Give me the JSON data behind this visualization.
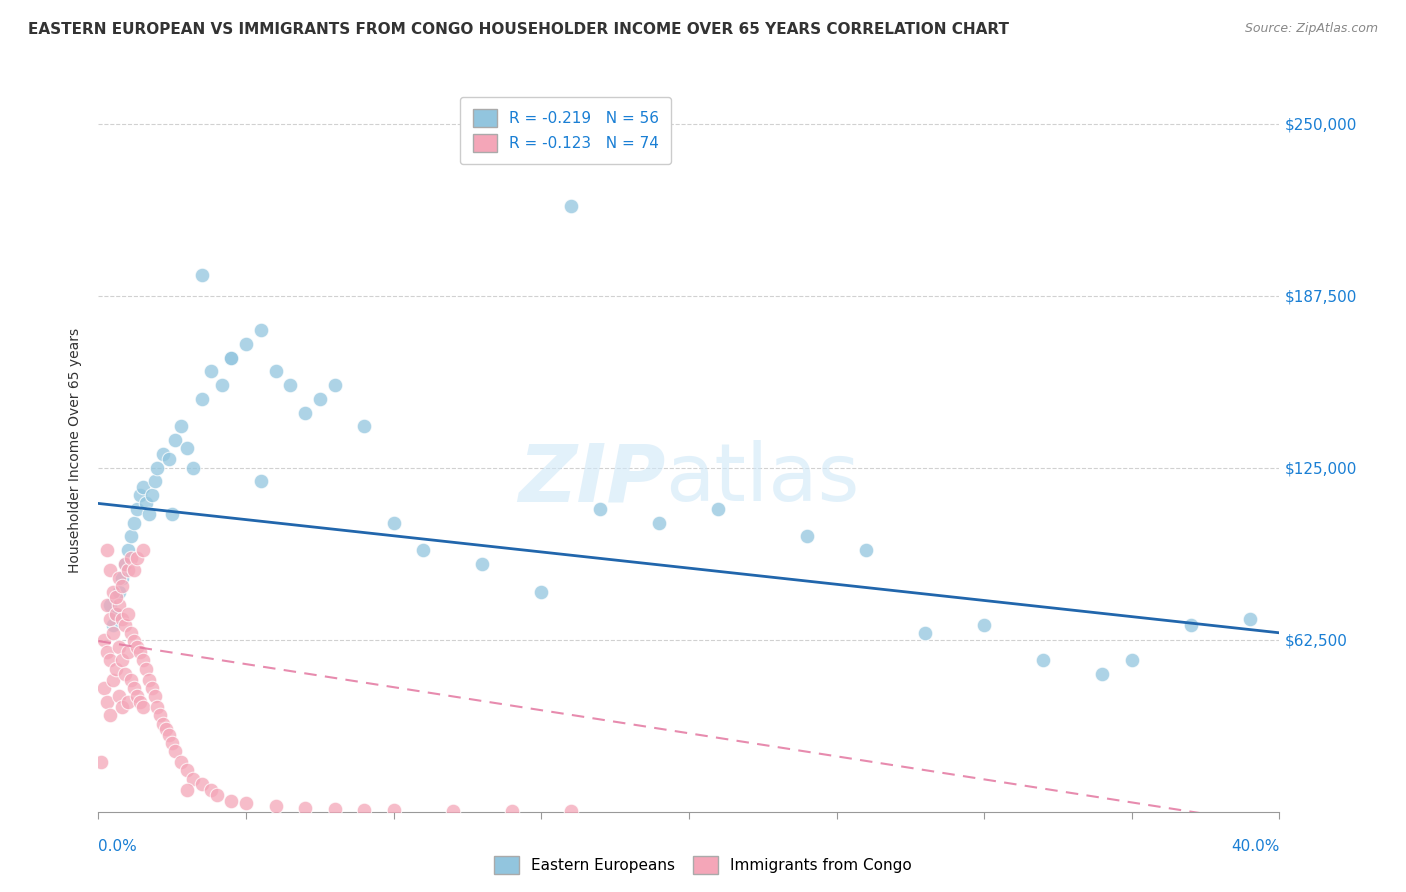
{
  "title": "EASTERN EUROPEAN VS IMMIGRANTS FROM CONGO HOUSEHOLDER INCOME OVER 65 YEARS CORRELATION CHART",
  "source": "Source: ZipAtlas.com",
  "ylabel": "Householder Income Over 65 years",
  "ytick_labels": [
    "$62,500",
    "$125,000",
    "$187,500",
    "$250,000"
  ],
  "ytick_values": [
    62500,
    125000,
    187500,
    250000
  ],
  "ymin": 0,
  "ymax": 262500,
  "xmin": 0.0,
  "xmax": 0.4,
  "blue_color": "#92c5de",
  "pink_color": "#f4a6b8",
  "blue_line_color": "#2166ac",
  "pink_line_color": "#e377a0",
  "blue_scatter_x": [
    0.004,
    0.005,
    0.006,
    0.007,
    0.008,
    0.009,
    0.01,
    0.011,
    0.012,
    0.013,
    0.014,
    0.015,
    0.016,
    0.017,
    0.018,
    0.019,
    0.02,
    0.022,
    0.024,
    0.026,
    0.028,
    0.03,
    0.032,
    0.035,
    0.038,
    0.042,
    0.045,
    0.05,
    0.055,
    0.06,
    0.065,
    0.07,
    0.075,
    0.08,
    0.09,
    0.1,
    0.11,
    0.13,
    0.15,
    0.17,
    0.19,
    0.21,
    0.24,
    0.26,
    0.28,
    0.3,
    0.32,
    0.34,
    0.35,
    0.37,
    0.39,
    0.025,
    0.035,
    0.045,
    0.055,
    0.16
  ],
  "blue_scatter_y": [
    75000,
    68000,
    72000,
    80000,
    85000,
    90000,
    95000,
    100000,
    105000,
    110000,
    115000,
    118000,
    112000,
    108000,
    115000,
    120000,
    125000,
    130000,
    128000,
    135000,
    140000,
    132000,
    125000,
    150000,
    160000,
    155000,
    165000,
    170000,
    175000,
    160000,
    155000,
    145000,
    150000,
    155000,
    140000,
    105000,
    95000,
    90000,
    80000,
    110000,
    105000,
    110000,
    100000,
    95000,
    65000,
    68000,
    55000,
    50000,
    55000,
    68000,
    70000,
    108000,
    195000,
    165000,
    120000,
    220000
  ],
  "pink_scatter_x": [
    0.001,
    0.002,
    0.002,
    0.003,
    0.003,
    0.003,
    0.004,
    0.004,
    0.004,
    0.005,
    0.005,
    0.005,
    0.006,
    0.006,
    0.007,
    0.007,
    0.007,
    0.008,
    0.008,
    0.008,
    0.009,
    0.009,
    0.01,
    0.01,
    0.01,
    0.011,
    0.011,
    0.012,
    0.012,
    0.013,
    0.013,
    0.014,
    0.014,
    0.015,
    0.015,
    0.016,
    0.017,
    0.018,
    0.019,
    0.02,
    0.021,
    0.022,
    0.023,
    0.024,
    0.025,
    0.026,
    0.028,
    0.03,
    0.032,
    0.035,
    0.038,
    0.04,
    0.045,
    0.05,
    0.06,
    0.07,
    0.08,
    0.09,
    0.1,
    0.12,
    0.14,
    0.16,
    0.003,
    0.004,
    0.006,
    0.007,
    0.008,
    0.009,
    0.01,
    0.011,
    0.012,
    0.013,
    0.015,
    0.03
  ],
  "pink_scatter_y": [
    18000,
    62500,
    45000,
    75000,
    58000,
    40000,
    70000,
    55000,
    35000,
    80000,
    65000,
    48000,
    72000,
    52000,
    75000,
    60000,
    42000,
    70000,
    55000,
    38000,
    68000,
    50000,
    72000,
    58000,
    40000,
    65000,
    48000,
    62000,
    45000,
    60000,
    42000,
    58000,
    40000,
    55000,
    38000,
    52000,
    48000,
    45000,
    42000,
    38000,
    35000,
    32000,
    30000,
    28000,
    25000,
    22000,
    18000,
    15000,
    12000,
    10000,
    8000,
    6000,
    4000,
    3000,
    2000,
    1500,
    1000,
    800,
    600,
    400,
    300,
    200,
    95000,
    88000,
    78000,
    85000,
    82000,
    90000,
    88000,
    92000,
    88000,
    92000,
    95000,
    8000
  ]
}
